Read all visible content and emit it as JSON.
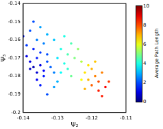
{
  "chart_data": {
    "type": "scatter",
    "x_label": "Ψ₂",
    "y_label": "Ψ₃",
    "xlim": [
      -0.14,
      -0.11
    ],
    "xticks": [
      -0.14,
      -0.13,
      -0.12,
      -0.11
    ],
    "ylim": [
      -0.2,
      -0.14
    ],
    "yticks": [
      -0.2,
      -0.19,
      -0.18,
      -0.17,
      -0.16,
      -0.15,
      -0.14
    ],
    "grid": false,
    "x": [
      -0.138,
      -0.137,
      -0.136,
      -0.135,
      -0.134,
      -0.133,
      -0.136,
      -0.139,
      -0.132,
      -0.135,
      -0.137,
      -0.134,
      -0.131,
      -0.138,
      -0.133,
      -0.14,
      -0.138,
      -0.136,
      -0.134,
      -0.133,
      -0.139,
      -0.131,
      -0.137,
      -0.135,
      -0.13,
      -0.129,
      -0.128,
      -0.127,
      -0.126,
      -0.129,
      -0.127,
      -0.125,
      -0.13,
      -0.128,
      -0.124,
      -0.126,
      -0.131,
      -0.123,
      -0.122,
      -0.121,
      -0.12,
      -0.119,
      -0.121,
      -0.118,
      -0.12,
      -0.122,
      -0.117,
      -0.119,
      -0.123,
      -0.118,
      -0.116,
      -0.117,
      -0.115,
      -0.135,
      -0.133,
      -0.136
    ],
    "values": [
      -0.172,
      -0.175,
      -0.17,
      -0.174,
      -0.177,
      -0.172,
      -0.178,
      -0.169,
      -0.175,
      -0.167,
      -0.165,
      -0.18,
      -0.178,
      -0.176,
      -0.168,
      -0.158,
      -0.155,
      -0.16,
      -0.162,
      -0.157,
      -0.163,
      -0.16,
      -0.15,
      -0.153,
      -0.17,
      -0.165,
      -0.173,
      -0.168,
      -0.162,
      -0.178,
      -0.176,
      -0.17,
      -0.183,
      -0.158,
      -0.165,
      -0.18,
      -0.186,
      -0.172,
      -0.178,
      -0.182,
      -0.176,
      -0.18,
      -0.174,
      -0.183,
      -0.185,
      -0.187,
      -0.178,
      -0.172,
      -0.182,
      -0.188,
      -0.186,
      -0.191,
      -0.183,
      -0.185,
      -0.19,
      -0.182
    ],
    "average_path_length": [
      1,
      0.5,
      1.5,
      1,
      1.2,
      2,
      0.8,
      1,
      2.2,
      1.8,
      1.5,
      1.5,
      2.5,
      0.7,
      2,
      1.5,
      2,
      2.5,
      2.5,
      3,
      1.8,
      3.2,
      2,
      2.8,
      3.5,
      4,
      4,
      4.5,
      4.5,
      3.8,
      4.2,
      5,
      3,
      4,
      5.2,
      4.8,
      2.8,
      5.5,
      6.5,
      7,
      7,
      7.5,
      6.5,
      8,
      7.8,
      7,
      7.5,
      6.8,
      6.2,
      8.5,
      8.8,
      8.5,
      8.2,
      1.5,
      2,
      1.2
    ],
    "colorbar": {
      "label": "Average Path Length",
      "range": [
        0,
        10
      ],
      "ticks": [
        0,
        2,
        4,
        6,
        8,
        10
      ]
    }
  }
}
